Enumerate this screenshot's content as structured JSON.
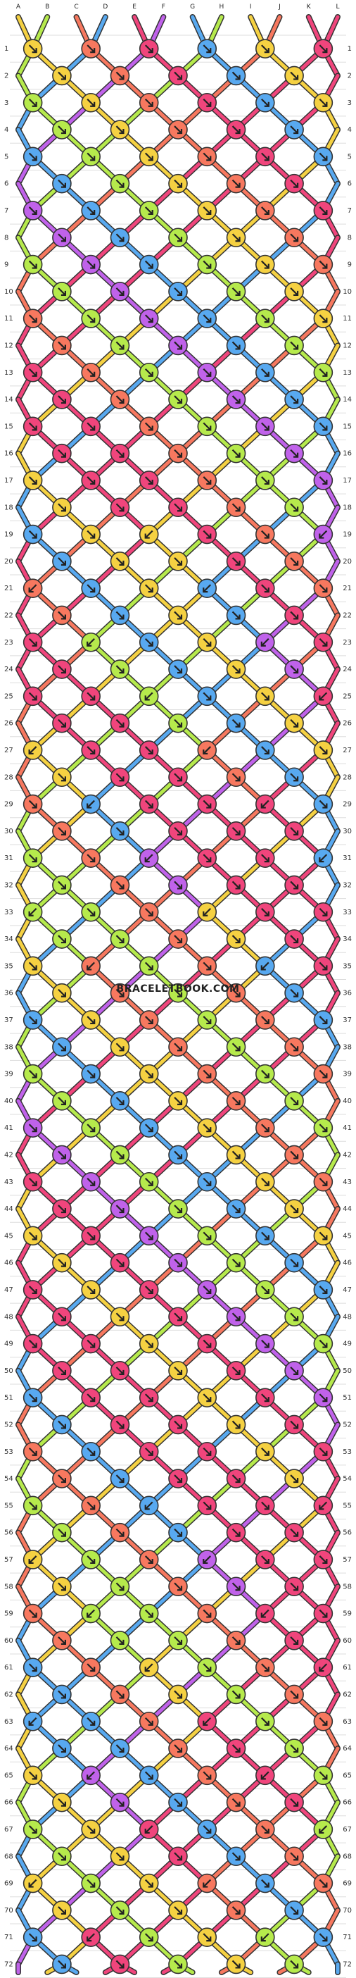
{
  "watermark": "BRACELETBOOK.COM",
  "thread_labels": [
    "A",
    "B",
    "C",
    "D",
    "E",
    "F",
    "G",
    "H",
    "I",
    "J",
    "K",
    "L"
  ],
  "row_count": 72,
  "colors": {
    "yellow": "#f5d142",
    "green": "#b6ea4c",
    "orange": "#f7785f",
    "pink": "#f0457c",
    "blue": "#58a9f0",
    "purple": "#c062ea"
  },
  "thread_colors": [
    "yellow",
    "yellow",
    "orange",
    "orange",
    "pink",
    "pink",
    "blue",
    "blue",
    "green",
    "green",
    "orange",
    "pink"
  ],
  "knot_direction_icon": "arrow-down-right-icon"
}
